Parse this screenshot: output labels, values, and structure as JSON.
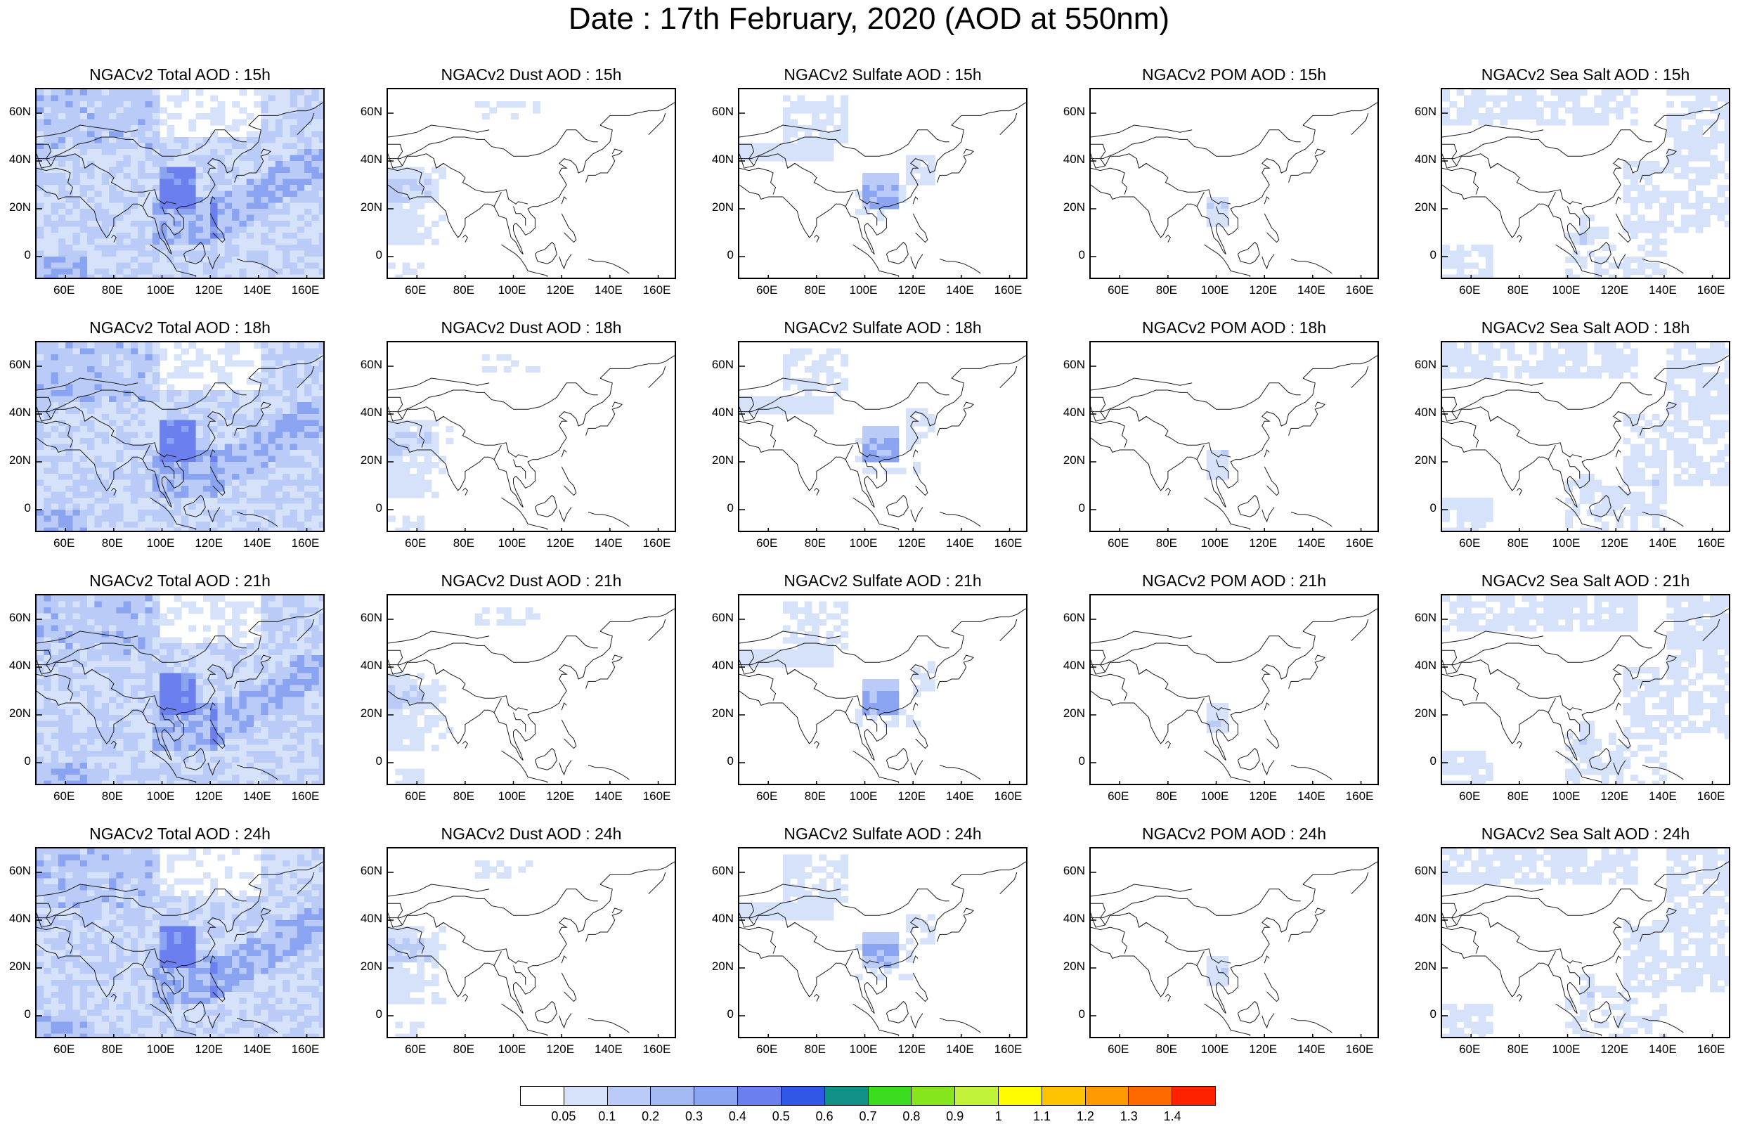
{
  "title": "Date : 17th February, 2020 (AOD at 550nm)",
  "panels": [
    [
      "NGACv2 Total AOD : 15h",
      "NGACv2 Dust AOD : 15h",
      "NGACv2 Sulfate AOD : 15h",
      "NGACv2 POM AOD : 15h",
      "NGACv2 Sea Salt AOD : 15h"
    ],
    [
      "NGACv2 Total AOD : 18h",
      "NGACv2 Dust AOD : 18h",
      "NGACv2 Sulfate AOD : 18h",
      "NGACv2 POM AOD : 18h",
      "NGACv2 Sea Salt AOD : 18h"
    ],
    [
      "NGACv2 Total AOD : 21h",
      "NGACv2 Dust AOD : 21h",
      "NGACv2 Sulfate AOD : 21h",
      "NGACv2 POM AOD : 21h",
      "NGACv2 Sea Salt AOD : 21h"
    ],
    [
      "NGACv2 Total AOD : 24h",
      "NGACv2 Dust AOD : 24h",
      "NGACv2 Sulfate AOD : 24h",
      "NGACv2 POM AOD : 24h",
      "NGACv2 Sea Salt  AOD : 24h"
    ]
  ],
  "lat_ticks": [
    "60N",
    "40N",
    "20N",
    "0"
  ],
  "lon_ticks": [
    "60E",
    "80E",
    "100E",
    "120E",
    "140E",
    "160E"
  ],
  "colorbar": {
    "labels": [
      "0.05",
      "0.1",
      "0.2",
      "0.3",
      "0.4",
      "0.5",
      "0.6",
      "0.7",
      "0.8",
      "0.9",
      "1",
      "1.1",
      "1.2",
      "1.3",
      "1.4"
    ],
    "colors": [
      "#ffffff",
      "#d6e2fa",
      "#b9cbf6",
      "#a3b9f4",
      "#8aa4f1",
      "#6b7fee",
      "#2f57e8",
      "#119088",
      "#3ddb1f",
      "#86e61e",
      "#c3f23a",
      "#fffc00",
      "#ffc300",
      "#ff9a00",
      "#ff6a00",
      "#ff2200"
    ]
  },
  "map_colors": {
    "light": "#d6e2fa",
    "mid": "#b9cbf6",
    "dark": "#8aa4f1",
    "darker": "#6b7fee",
    "coast": "#1a1a1a"
  }
}
